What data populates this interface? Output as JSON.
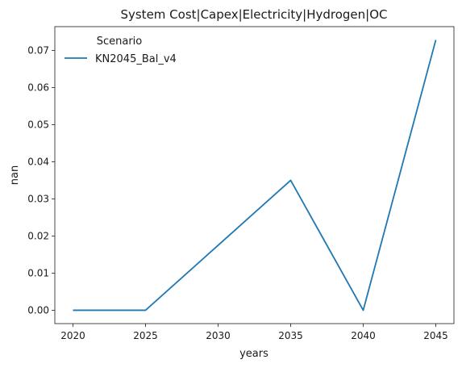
{
  "chart_data": {
    "type": "line",
    "title": "System Cost|Capex|Electricity|Hydrogen|OC",
    "xlabel": "years",
    "ylabel": "nan",
    "x": [
      2020,
      2025,
      2030,
      2035,
      2040,
      2045
    ],
    "xticks": [
      "2020",
      "2025",
      "2030",
      "2035",
      "2040",
      "2045"
    ],
    "yticks": [
      "0.00",
      "0.01",
      "0.02",
      "0.03",
      "0.04",
      "0.05",
      "0.06",
      "0.07"
    ],
    "xlim": [
      2018.75,
      2046.25
    ],
    "ylim": [
      -0.0036,
      0.0764
    ],
    "grid": false,
    "legend": {
      "title": "Scenario",
      "placement": "top-left"
    },
    "series": [
      {
        "name": "KN2045_Bal_v4",
        "color": "#1f77b4",
        "values": [
          0.0,
          0.0,
          0.0175,
          0.035,
          0.0,
          0.0728
        ]
      }
    ]
  }
}
